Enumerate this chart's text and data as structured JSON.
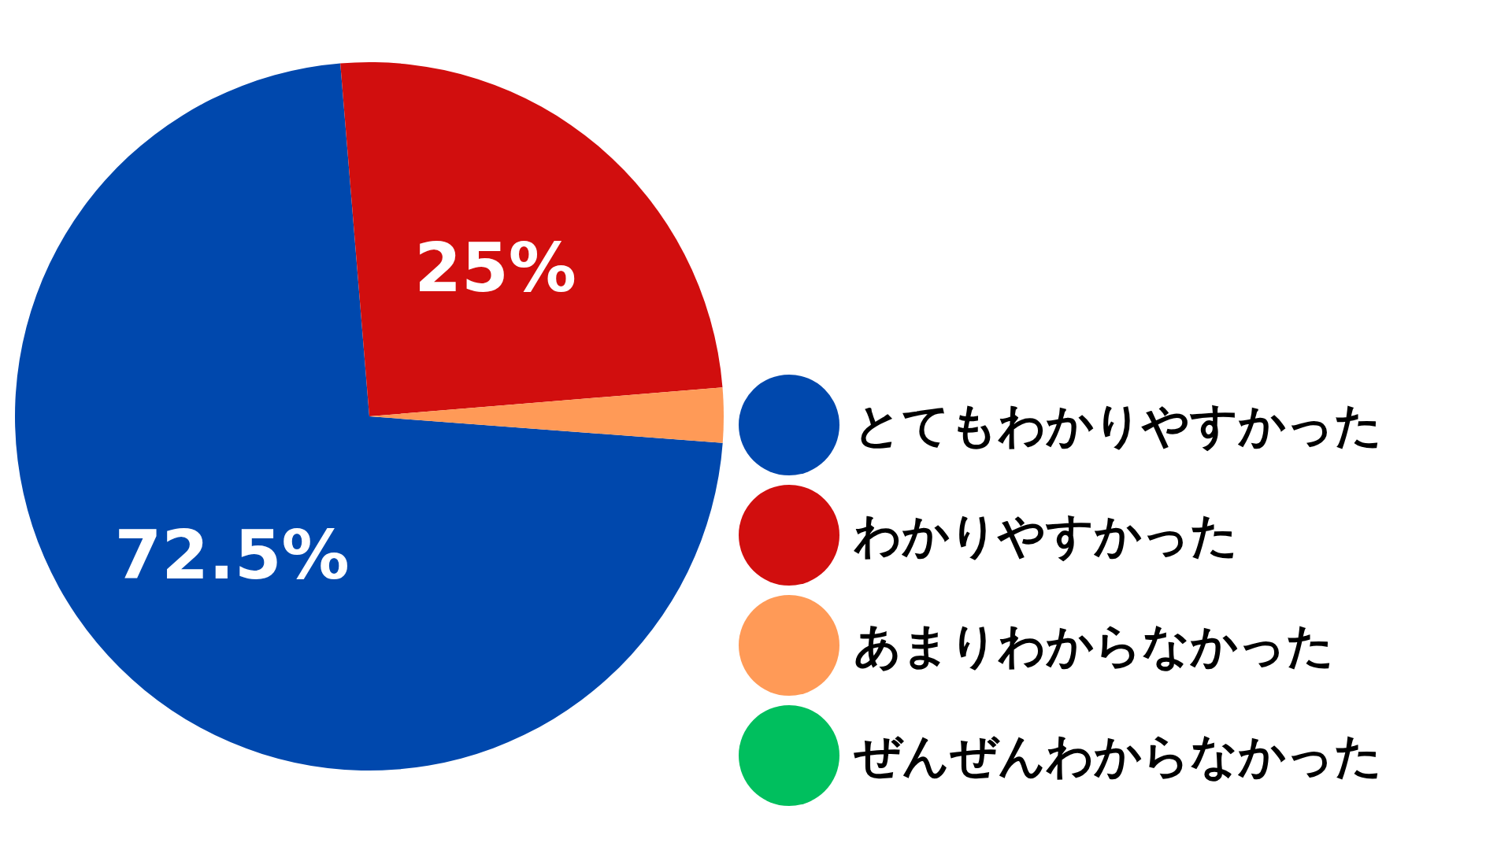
{
  "chart_data": {
    "type": "pie",
    "categories": [
      "とてもわかりやすかった",
      "わかりやすかった",
      "あまりわからなかった",
      "ぜんぜんわからなかった"
    ],
    "values": [
      72.5,
      25,
      2.5,
      0
    ],
    "colors": [
      "#0048ad",
      "#d10e0e",
      "#ff9a57",
      "#00bf5e"
    ],
    "value_labels": [
      "72.5%",
      "25%",
      null,
      null
    ],
    "legend": "right"
  }
}
